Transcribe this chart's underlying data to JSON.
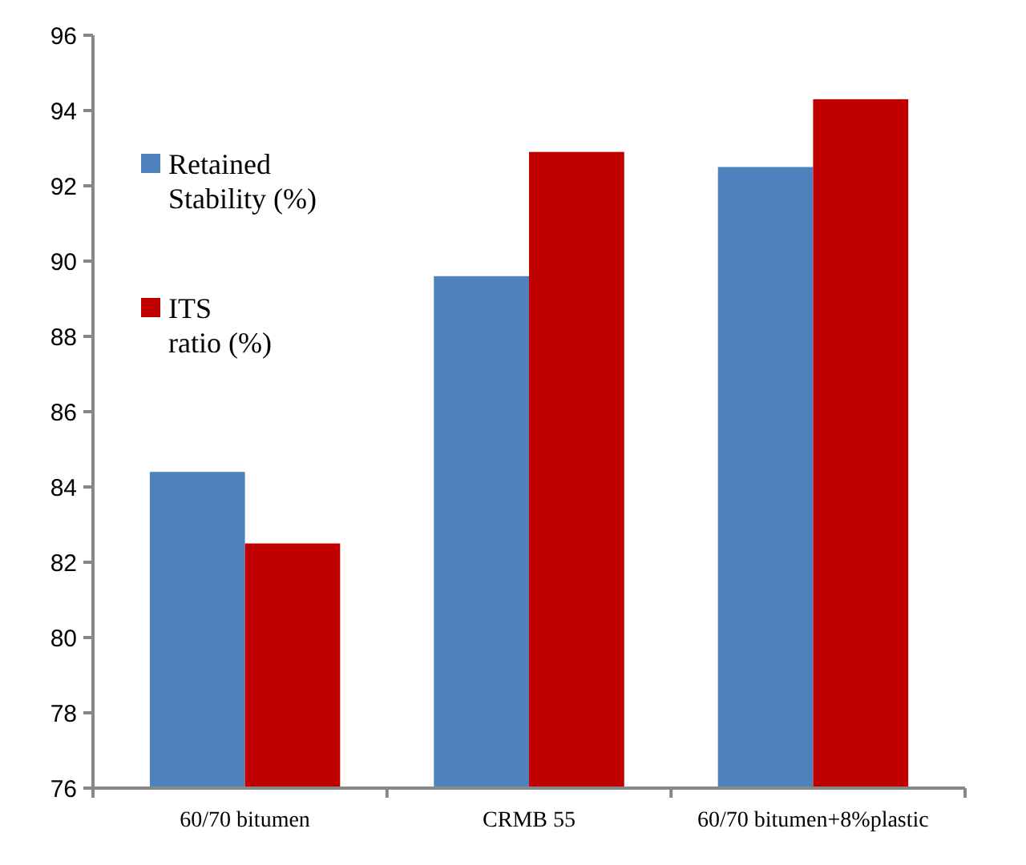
{
  "chart_data": {
    "type": "bar",
    "categories": [
      "60/70 bitumen",
      "CRMB 55",
      "60/70 bitumen+8%plastic"
    ],
    "series": [
      {
        "name": "Retained Stability (%)",
        "color": "#4f81bd",
        "values": [
          84.4,
          89.6,
          92.5
        ]
      },
      {
        "name": "ITS ratio (%)",
        "color": "#c00000",
        "values": [
          82.5,
          92.9,
          94.3
        ]
      }
    ],
    "ylim": [
      76,
      96
    ],
    "yticks": [
      76,
      78,
      80,
      82,
      84,
      86,
      88,
      90,
      92,
      94,
      96
    ],
    "grid": false,
    "legend": "top left"
  }
}
